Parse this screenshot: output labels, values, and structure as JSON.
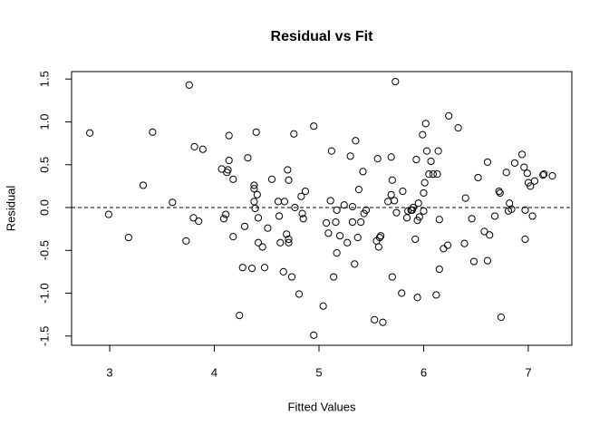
{
  "chart_data": {
    "type": "scatter",
    "title": "Residual vs Fit",
    "x_label": "Fitted Values",
    "y_label": "Residual",
    "x": [
      2.81,
      2.99,
      3.18,
      3.32,
      3.41,
      3.6,
      3.73,
      3.76,
      3.8,
      3.81,
      3.85,
      3.89,
      4.07,
      4.09,
      4.11,
      4.12,
      4.13,
      4.14,
      4.14,
      4.18,
      4.18,
      4.24,
      4.27,
      4.29,
      4.32,
      4.36,
      4.38,
      4.38,
      4.38,
      4.39,
      4.4,
      4.41,
      4.42,
      4.42,
      4.46,
      4.48,
      4.51,
      4.55,
      4.61,
      4.62,
      4.63,
      4.66,
      4.67,
      4.69,
      4.7,
      4.71,
      4.71,
      4.71,
      4.74,
      4.76,
      4.77,
      4.81,
      4.83,
      4.84,
      4.85,
      4.87,
      4.95,
      4.95,
      5.04,
      5.07,
      5.09,
      5.11,
      5.12,
      5.14,
      5.16,
      5.17,
      5.17,
      5.2,
      5.24,
      5.27,
      5.3,
      5.32,
      5.32,
      5.34,
      5.35,
      5.37,
      5.38,
      5.4,
      5.42,
      5.43,
      5.45,
      5.53,
      5.55,
      5.56,
      5.57,
      5.58,
      5.59,
      5.61,
      5.66,
      5.69,
      5.69,
      5.7,
      5.7,
      5.72,
      5.73,
      5.74,
      5.79,
      5.8,
      5.84,
      5.85,
      5.88,
      5.89,
      5.9,
      5.92,
      5.93,
      5.94,
      5.94,
      5.95,
      5.96,
      5.99,
      6.0,
      6.0,
      6.01,
      6.02,
      6.03,
      6.05,
      6.07,
      6.09,
      6.12,
      6.13,
      6.14,
      6.15,
      6.15,
      6.19,
      6.23,
      6.24,
      6.33,
      6.39,
      6.4,
      6.46,
      6.48,
      6.52,
      6.58,
      6.61,
      6.61,
      6.63,
      6.68,
      6.72,
      6.73,
      6.74,
      6.79,
      6.81,
      6.82,
      6.84,
      6.87,
      6.94,
      6.96,
      6.97,
      6.97,
      6.99,
      7.0,
      7.02,
      7.04,
      7.06,
      7.14,
      7.15,
      7.23
    ],
    "y": [
      0.87,
      -0.08,
      -0.35,
      0.26,
      0.88,
      0.06,
      -0.39,
      1.43,
      -0.12,
      0.71,
      -0.16,
      0.68,
      0.45,
      -0.13,
      -0.08,
      0.41,
      0.44,
      0.84,
      0.55,
      0.33,
      -0.34,
      -1.26,
      -0.7,
      -0.22,
      0.58,
      -0.71,
      0.26,
      0.22,
      0.07,
      -0.01,
      0.88,
      0.15,
      -0.41,
      -0.12,
      -0.46,
      -0.7,
      -0.24,
      0.33,
      0.07,
      -0.1,
      -0.41,
      -0.75,
      0.07,
      -0.31,
      0.44,
      -0.37,
      -0.41,
      0.32,
      -0.81,
      0.86,
      0.0,
      -1.01,
      0.13,
      -0.07,
      -0.13,
      0.19,
      0.95,
      -1.49,
      -1.15,
      -0.18,
      -0.3,
      0.08,
      0.66,
      -0.81,
      -0.17,
      -0.03,
      -0.53,
      -0.33,
      0.03,
      -0.41,
      0.6,
      -0.17,
      0.01,
      -0.66,
      0.78,
      -0.35,
      0.21,
      -0.17,
      0.42,
      -0.07,
      -0.03,
      -1.31,
      -0.39,
      0.57,
      -0.46,
      -0.35,
      -0.33,
      -1.34,
      0.07,
      0.15,
      0.59,
      -0.81,
      0.32,
      0.08,
      1.47,
      -0.06,
      -1.0,
      0.19,
      -0.12,
      -0.04,
      -0.03,
      -0.03,
      0.0,
      -0.37,
      0.56,
      -1.05,
      -0.15,
      0.05,
      -0.11,
      0.85,
      -0.04,
      0.17,
      0.29,
      0.98,
      0.66,
      0.39,
      0.54,
      0.39,
      -1.02,
      0.39,
      0.66,
      -0.14,
      -0.72,
      -0.48,
      -0.44,
      1.07,
      0.93,
      -0.42,
      0.11,
      -0.13,
      -0.63,
      0.35,
      -0.28,
      0.53,
      -0.62,
      -0.32,
      -0.1,
      0.19,
      0.17,
      -1.28,
      0.41,
      -0.04,
      0.05,
      -0.02,
      0.52,
      0.62,
      0.47,
      -0.37,
      -0.03,
      0.4,
      0.29,
      0.25,
      -0.1,
      0.31,
      0.38,
      0.39,
      0.37
    ],
    "xlim": [
      2.636,
      7.416
    ],
    "ylim": [
      -1.608,
      1.587
    ],
    "xticks": [
      3,
      4,
      5,
      6,
      7
    ],
    "yticks": [
      -1.5,
      {
        "value": -1,
        "label": "-1.0"
      },
      -0.5,
      {
        "value": 0,
        "label": "0.0"
      },
      0.5,
      {
        "value": 1,
        "label": "1.0"
      },
      1.5
    ],
    "reference_line": 0,
    "color": "#000000"
  }
}
